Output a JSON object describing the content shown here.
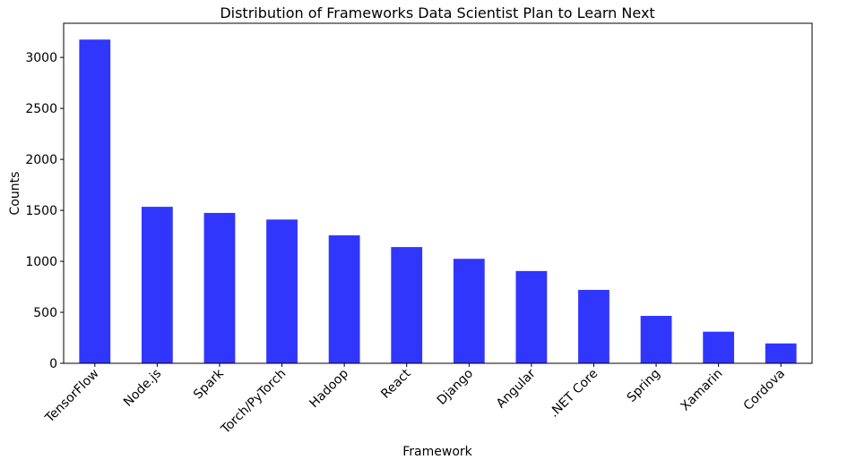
{
  "chart_data": {
    "type": "bar",
    "title": "Distribution of Frameworks Data Scientist Plan to Learn Next",
    "xlabel": "Framework",
    "ylabel": "Counts",
    "categories": [
      "TensorFlow",
      "Node.js",
      "Spark",
      "Torch/PyTorch",
      "Hadoop",
      "React",
      "Django",
      "Angular",
      ".NET Core",
      "Spring",
      "Xamarin",
      "Cordova"
    ],
    "values": [
      3175,
      1535,
      1475,
      1410,
      1255,
      1140,
      1025,
      905,
      720,
      465,
      310,
      195
    ],
    "ylim": [
      0,
      3335
    ],
    "yticks": [
      0,
      500,
      1000,
      1500,
      2000,
      2500,
      3000
    ],
    "bar_color": "#3136fd",
    "grid": false,
    "legend": "none"
  }
}
